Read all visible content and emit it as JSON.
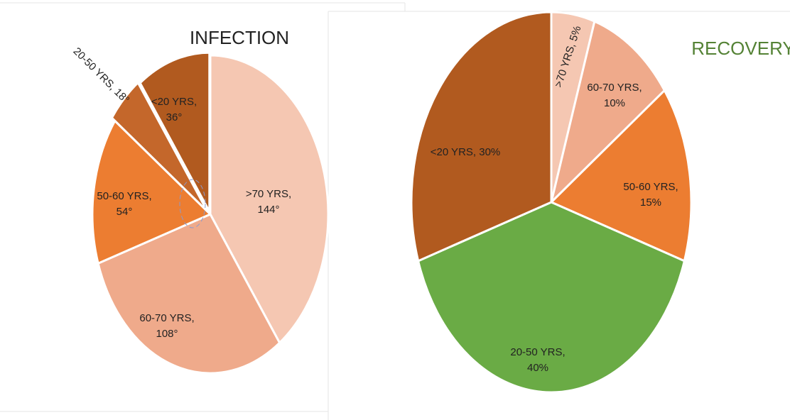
{
  "chart_data": [
    {
      "type": "pie",
      "title": "INFECTION",
      "values": [
        144,
        108,
        54,
        18,
        36
      ],
      "value_labels": [
        ">70 YRS, 144°",
        "60-70 YRS, 108°",
        "50-60 YRS, 54°",
        "20-50 YRS, 18°",
        "<20 YRS, 36°"
      ],
      "colors": [
        "#f5c7b2",
        "#efaa8b",
        "#ec7d31",
        "#c4672b",
        "#b15a1f"
      ]
    },
    {
      "type": "pie",
      "title": "RECOVERY",
      "values": [
        5,
        10,
        15,
        40,
        30
      ],
      "value_labels": [
        ">70 YRS, 5%",
        "60-70 YRS, 10%",
        "50-60 YRS, 15%",
        "20-50 YRS, 40%",
        "<20 YRS, 30%"
      ],
      "colors": [
        "#f5c7b2",
        "#efaa8b",
        "#ec7d31",
        "#6aab45",
        "#b15a1f"
      ]
    }
  ]
}
